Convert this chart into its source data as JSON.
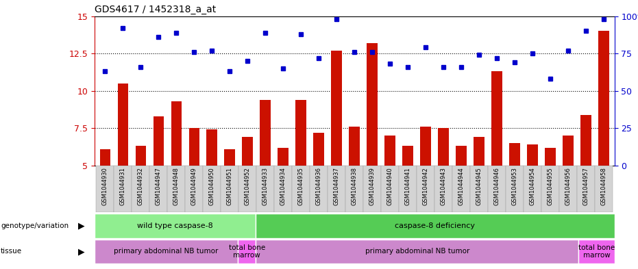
{
  "title": "GDS4617 / 1452318_a_at",
  "samples": [
    "GSM1044930",
    "GSM1044931",
    "GSM1044932",
    "GSM1044947",
    "GSM1044948",
    "GSM1044949",
    "GSM1044950",
    "GSM1044951",
    "GSM1044952",
    "GSM1044933",
    "GSM1044934",
    "GSM1044935",
    "GSM1044936",
    "GSM1044937",
    "GSM1044938",
    "GSM1044939",
    "GSM1044940",
    "GSM1044941",
    "GSM1044942",
    "GSM1044943",
    "GSM1044944",
    "GSM1044945",
    "GSM1044946",
    "GSM1044953",
    "GSM1044954",
    "GSM1044955",
    "GSM1044956",
    "GSM1044957",
    "GSM1044958"
  ],
  "red_values": [
    6.1,
    10.5,
    6.3,
    8.3,
    9.3,
    7.5,
    7.4,
    6.1,
    6.9,
    9.4,
    6.2,
    9.4,
    7.2,
    12.7,
    7.6,
    13.2,
    7.0,
    6.3,
    7.6,
    7.5,
    6.3,
    6.9,
    11.3,
    6.5,
    6.4,
    6.2,
    7.0,
    8.4,
    14.0
  ],
  "blue_values": [
    11.3,
    14.2,
    11.6,
    13.6,
    13.9,
    12.6,
    12.7,
    11.3,
    12.0,
    13.9,
    11.5,
    13.8,
    12.2,
    14.8,
    12.6,
    12.6,
    11.8,
    11.6,
    12.9,
    11.6,
    11.6,
    12.4,
    12.2,
    11.9,
    12.5,
    10.8,
    12.7,
    14.0,
    14.8
  ],
  "ylim_left": [
    5,
    15
  ],
  "yticks_left": [
    5,
    7.5,
    10,
    12.5,
    15
  ],
  "ytick_labels_left": [
    "5",
    "7.5",
    "10",
    "12.5",
    "15"
  ],
  "ytick_labels_right": [
    "0",
    "25",
    "50",
    "75",
    "100%"
  ],
  "hlines": [
    7.5,
    10,
    12.5
  ],
  "genotype_groups": [
    {
      "label": "wild type caspase-8",
      "start": 0,
      "end": 9,
      "color": "#90EE90"
    },
    {
      "label": "caspase-8 deficiency",
      "start": 9,
      "end": 29,
      "color": "#55CC55"
    }
  ],
  "tissue_groups": [
    {
      "label": "primary abdominal NB tumor",
      "start": 0,
      "end": 8,
      "color": "#CC88CC"
    },
    {
      "label": "total bone\nmarrow",
      "start": 8,
      "end": 9,
      "color": "#EE66EE"
    },
    {
      "label": "primary abdominal NB tumor",
      "start": 9,
      "end": 27,
      "color": "#CC88CC"
    },
    {
      "label": "total bone\nmarrow",
      "start": 27,
      "end": 29,
      "color": "#EE66EE"
    }
  ],
  "bar_color": "#CC1100",
  "dot_color": "#0000CC",
  "left_axis_color": "#CC0000",
  "right_axis_color": "#0000CC"
}
